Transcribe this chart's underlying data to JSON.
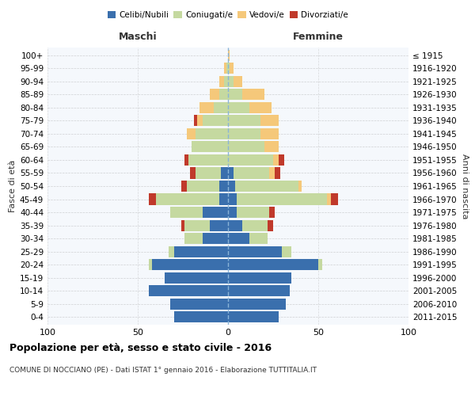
{
  "age_groups": [
    "0-4",
    "5-9",
    "10-14",
    "15-19",
    "20-24",
    "25-29",
    "30-34",
    "35-39",
    "40-44",
    "45-49",
    "50-54",
    "55-59",
    "60-64",
    "65-69",
    "70-74",
    "75-79",
    "80-84",
    "85-89",
    "90-94",
    "95-99",
    "100+"
  ],
  "birth_years": [
    "2011-2015",
    "2006-2010",
    "2001-2005",
    "1996-2000",
    "1991-1995",
    "1986-1990",
    "1981-1985",
    "1976-1980",
    "1971-1975",
    "1966-1970",
    "1961-1965",
    "1956-1960",
    "1951-1955",
    "1946-1950",
    "1941-1945",
    "1936-1940",
    "1931-1935",
    "1926-1930",
    "1921-1925",
    "1916-1920",
    "≤ 1915"
  ],
  "colors": {
    "celibi": "#3a6fad",
    "coniugati": "#c5d9a0",
    "vedovi": "#f5c87a",
    "divorziati": "#c0392b"
  },
  "male": {
    "celibi": [
      30,
      32,
      44,
      35,
      42,
      30,
      14,
      10,
      14,
      5,
      5,
      4,
      0,
      0,
      0,
      0,
      0,
      0,
      0,
      0,
      0
    ],
    "coniugati": [
      0,
      0,
      0,
      0,
      2,
      3,
      10,
      14,
      18,
      35,
      18,
      14,
      22,
      20,
      18,
      14,
      8,
      5,
      2,
      1,
      0
    ],
    "vedovi": [
      0,
      0,
      0,
      0,
      0,
      0,
      0,
      0,
      0,
      0,
      0,
      0,
      0,
      0,
      5,
      3,
      8,
      5,
      3,
      1,
      0
    ],
    "divorziati": [
      0,
      0,
      0,
      0,
      0,
      0,
      0,
      2,
      0,
      4,
      3,
      3,
      2,
      0,
      0,
      2,
      0,
      0,
      0,
      0,
      0
    ]
  },
  "female": {
    "nubili": [
      28,
      32,
      34,
      35,
      50,
      30,
      12,
      8,
      5,
      5,
      4,
      3,
      0,
      0,
      0,
      0,
      0,
      0,
      0,
      0,
      0
    ],
    "coniugate": [
      0,
      0,
      0,
      0,
      2,
      5,
      10,
      14,
      18,
      50,
      35,
      20,
      25,
      20,
      18,
      18,
      12,
      8,
      3,
      1,
      0
    ],
    "vedove": [
      0,
      0,
      0,
      0,
      0,
      0,
      0,
      0,
      0,
      2,
      2,
      3,
      3,
      8,
      10,
      10,
      12,
      12,
      5,
      2,
      1
    ],
    "divorziate": [
      0,
      0,
      0,
      0,
      0,
      0,
      0,
      3,
      3,
      4,
      0,
      3,
      3,
      0,
      0,
      0,
      0,
      0,
      0,
      0,
      0
    ]
  },
  "xlim": 100,
  "title": "Popolazione per età, sesso e stato civile - 2016",
  "subtitle": "COMUNE DI NOCCIANO (PE) - Dati ISTAT 1° gennaio 2016 - Elaborazione TUTTITALIA.IT",
  "ylabel_left": "Fasce di età",
  "ylabel_right": "Anni di nascita",
  "xlabel_left": "Maschi",
  "xlabel_right": "Femmine"
}
